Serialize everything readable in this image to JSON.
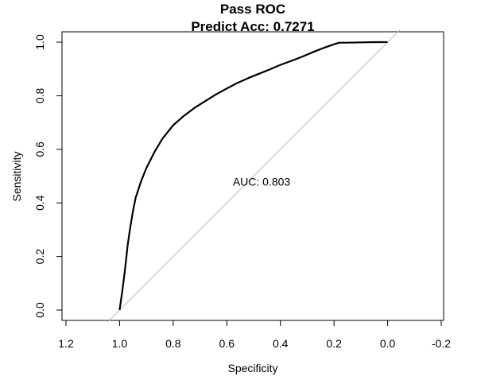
{
  "chart_data": {
    "type": "line",
    "title": "Pass ROC",
    "subtitle": "Predict Acc: 0.7271",
    "xlabel": "Specificity",
    "ylabel": "Sensitivity",
    "xlim": [
      1.2,
      -0.2
    ],
    "ylim": [
      0.0,
      1.0
    ],
    "x_reversed": true,
    "x_ticks": [
      1.2,
      1.0,
      0.8,
      0.6,
      0.4,
      0.2,
      0.0,
      -0.2
    ],
    "x_tick_labels": [
      "1.2",
      "1.0",
      "0.8",
      "0.6",
      "0.4",
      "0.2",
      "0.0",
      "-0.2"
    ],
    "y_ticks": [
      0.0,
      0.2,
      0.4,
      0.6,
      0.8,
      1.0
    ],
    "y_tick_labels": [
      "0.0",
      "0.2",
      "0.4",
      "0.6",
      "0.8",
      "1.0"
    ],
    "grid": false,
    "legend": "none",
    "annotation": {
      "text": "AUC: 0.803",
      "x": 0.5,
      "y": 0.47
    },
    "reference_line": {
      "from": [
        1.0,
        0.0
      ],
      "to": [
        0.0,
        1.0
      ],
      "color": "#bebebe"
    },
    "series": [
      {
        "color": "#000000",
        "x": [
          1.0,
          0.99,
          0.98,
          0.97,
          0.96,
          0.95,
          0.94,
          0.92,
          0.9,
          0.87,
          0.84,
          0.8,
          0.76,
          0.72,
          0.68,
          0.64,
          0.6,
          0.56,
          0.52,
          0.48,
          0.44,
          0.4,
          0.36,
          0.32,
          0.28,
          0.24,
          0.2,
          0.18,
          0.15,
          0.1,
          0.05,
          0.0
        ],
        "y": [
          0.0,
          0.07,
          0.15,
          0.24,
          0.31,
          0.37,
          0.42,
          0.48,
          0.53,
          0.59,
          0.64,
          0.69,
          0.725,
          0.755,
          0.78,
          0.805,
          0.827,
          0.848,
          0.866,
          0.882,
          0.898,
          0.915,
          0.93,
          0.945,
          0.962,
          0.978,
          0.992,
          0.998,
          0.998,
          0.999,
          1.0,
          1.0
        ]
      }
    ]
  }
}
